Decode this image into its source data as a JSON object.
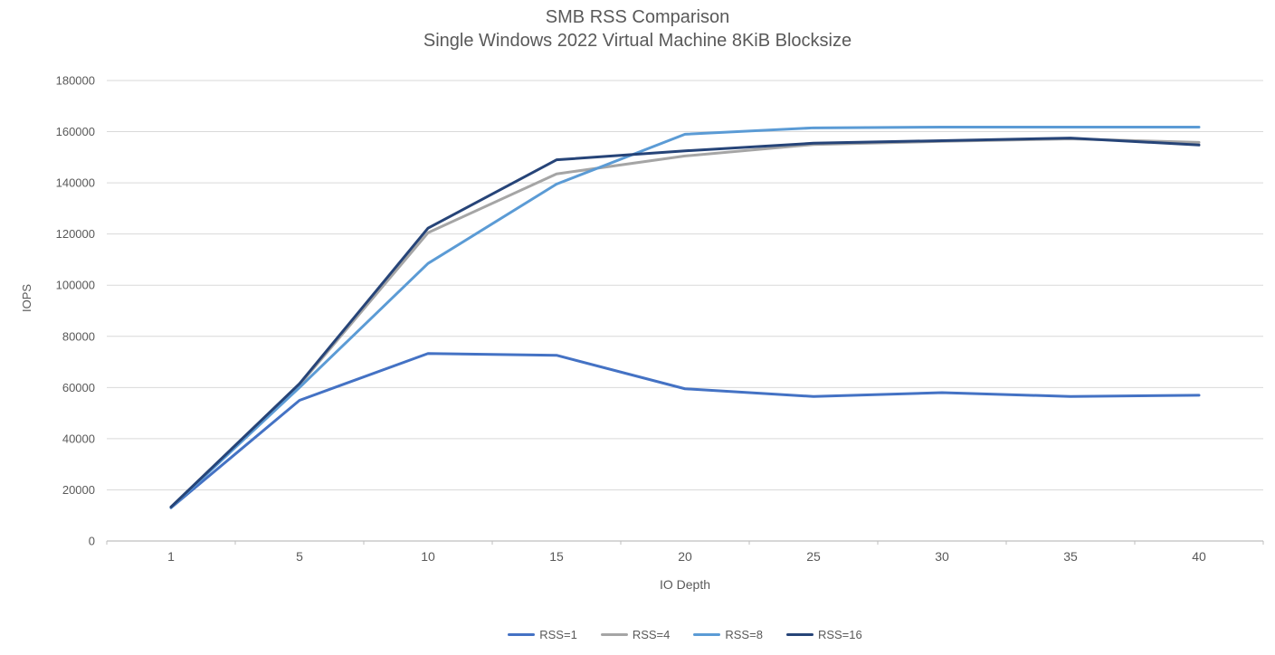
{
  "title": "SMB RSS Comparison",
  "subtitle": "Single Windows 2022 Virtual Machine 8KiB Blocksize",
  "colors": {
    "title_text": "#595959",
    "axis_text": "#595959",
    "gridline": "#D9D9D9",
    "axis_line": "#BFBFBF"
  },
  "chart_data": {
    "type": "line",
    "title": "SMB RSS Comparison",
    "subtitle": "Single Windows 2022 Virtual Machine 8KiB Blocksize",
    "xlabel": "IO Depth",
    "ylabel": "IOPS",
    "categories": [
      1,
      5,
      10,
      15,
      20,
      25,
      30,
      35,
      40
    ],
    "series": [
      {
        "name": "RSS=1",
        "color": "#4472C4",
        "values": [
          13000,
          55000,
          73300,
          72600,
          59500,
          56500,
          58000,
          56500,
          57000
        ]
      },
      {
        "name": "RSS=4",
        "color": "#A5A5A5",
        "values": [
          13200,
          61000,
          120500,
          143500,
          150500,
          155000,
          156200,
          157200,
          155800
        ]
      },
      {
        "name": "RSS=8",
        "color": "#5B9BD5",
        "values": [
          13100,
          60000,
          108500,
          139500,
          159000,
          161500,
          161800,
          161800,
          161800
        ]
      },
      {
        "name": "RSS=16",
        "color": "#264478",
        "values": [
          13300,
          61500,
          122300,
          149000,
          152500,
          155500,
          156500,
          157500,
          154800
        ]
      }
    ],
    "ylim": [
      0,
      180000
    ],
    "ytick_step": 20000,
    "grid": true,
    "legend_position": "bottom"
  }
}
